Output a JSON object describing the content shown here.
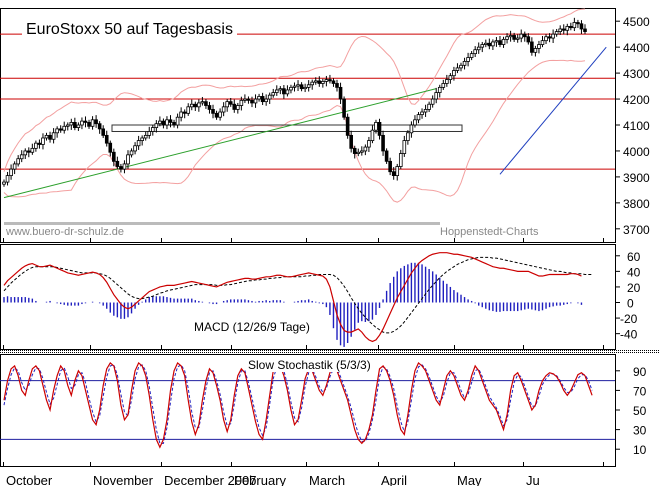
{
  "chart_data": [
    {
      "type": "candlestick",
      "title": "EuroStoxx 50 auf Tagesbasis",
      "watermark_left": "www.buero-dr-schulz.de",
      "watermark_right": "Hoppenstedt-Charts",
      "yticks": [
        3700,
        3800,
        3900,
        4000,
        4100,
        4200,
        4300,
        4400,
        4500
      ],
      "ylim": [
        3680,
        4520
      ],
      "horizontal_lines": [
        4450,
        4280,
        4200,
        3930
      ],
      "support_box": {
        "y_top": 4100,
        "y_bottom": 4075
      },
      "trend_lines": [
        {
          "color": "#2ca02c",
          "start": {
            "day": 0,
            "value": 3820
          },
          "end": {
            "day": 122,
            "value": 4240
          }
        },
        {
          "color": "#1f3fbf",
          "start": {
            "day": 140,
            "value": 3910
          },
          "end": {
            "day": 170,
            "value": 4400
          }
        }
      ],
      "close": [
        3880,
        3905,
        3930,
        3950,
        3970,
        3985,
        4000,
        3995,
        4010,
        4030,
        4025,
        4050,
        4060,
        4045,
        4070,
        4085,
        4080,
        4095,
        4100,
        4110,
        4090,
        4100,
        4115,
        4110,
        4095,
        4120,
        4105,
        4085,
        4060,
        4030,
        3995,
        3960,
        3940,
        3930,
        3950,
        3985,
        4000,
        4020,
        4040,
        4050,
        4060,
        4075,
        4090,
        4105,
        4115,
        4100,
        4120,
        4110,
        4100,
        4130,
        4150,
        4145,
        4170,
        4180,
        4170,
        4185,
        4190,
        4175,
        4160,
        4145,
        4130,
        4150,
        4170,
        4190,
        4180,
        4160,
        4175,
        4195,
        4200,
        4195,
        4185,
        4200,
        4210,
        4190,
        4200,
        4215,
        4225,
        4235,
        4240,
        4220,
        4235,
        4245,
        4250,
        4255,
        4240,
        4245,
        4255,
        4265,
        4270,
        4260,
        4268,
        4275,
        4270,
        4260,
        4245,
        4200,
        4130,
        4060,
        4010,
        3990,
        3995,
        4000,
        4015,
        4040,
        4080,
        4110,
        4060,
        4000,
        3960,
        3920,
        3905,
        3940,
        3990,
        4040,
        4070,
        4100,
        4120,
        4140,
        4150,
        4160,
        4180,
        4200,
        4225,
        4245,
        4260,
        4275,
        4290,
        4310,
        4320,
        4330,
        4345,
        4360,
        4375,
        4390,
        4400,
        4410,
        4415,
        4405,
        4420,
        4425,
        4410,
        4430,
        4440,
        4445,
        4430,
        4435,
        4450,
        4440,
        4420,
        4380,
        4395,
        4410,
        4425,
        4440,
        4435,
        4450,
        4460,
        4470,
        4465,
        4480,
        4475,
        4495,
        4490,
        4470,
        4460
      ]
    },
    {
      "type": "line",
      "label": "MACD (12/26/9 Tage)",
      "yticks": [
        -40,
        -20,
        0,
        20,
        40,
        60
      ],
      "ylim": [
        -52,
        70
      ],
      "macd": [
        22,
        28,
        32,
        36,
        40,
        44,
        47,
        49,
        50,
        48,
        46,
        46,
        47,
        48,
        46,
        44,
        42,
        40,
        38,
        37,
        36,
        35,
        36,
        37,
        38,
        39,
        38,
        36,
        32,
        26,
        18,
        10,
        4,
        -2,
        -6,
        -8,
        -6,
        -2,
        2,
        6,
        10,
        14,
        16,
        18,
        20,
        21,
        22,
        22,
        22,
        23,
        24,
        25,
        26,
        27,
        26,
        25,
        24,
        23,
        22,
        21,
        20,
        22,
        24,
        26,
        27,
        28,
        29,
        30,
        31,
        31,
        30,
        30,
        31,
        32,
        33,
        33,
        34,
        35,
        35,
        34,
        33,
        33,
        34,
        35,
        36,
        37,
        38,
        37,
        36,
        35,
        34,
        30,
        20,
        2,
        -16,
        -28,
        -36,
        -38,
        -38,
        -36,
        -34,
        -38,
        -44,
        -48,
        -50,
        -48,
        -42,
        -34,
        -24,
        -14,
        -4,
        6,
        14,
        22,
        30,
        38,
        44,
        50,
        54,
        57,
        60,
        62,
        63,
        64,
        64,
        64,
        63,
        62,
        62,
        61,
        60,
        59,
        58,
        56,
        54,
        52,
        50,
        48,
        46,
        45,
        44,
        44,
        43,
        42,
        41,
        40,
        40,
        40,
        40,
        38,
        36,
        34,
        34,
        35,
        36,
        36,
        36,
        36,
        36,
        36,
        37,
        37,
        36,
        34
      ],
      "signal": [
        15,
        20,
        25,
        29,
        33,
        37,
        40,
        43,
        45,
        46,
        46,
        46,
        46,
        46,
        46,
        45,
        44,
        43,
        42,
        41,
        40,
        39,
        38,
        38,
        38,
        38,
        38,
        37,
        36,
        34,
        31,
        27,
        23,
        19,
        15,
        11,
        8,
        6,
        5,
        5,
        6,
        7,
        8,
        10,
        12,
        13,
        15,
        16,
        17,
        18,
        19,
        20,
        21,
        22,
        23,
        23,
        23,
        23,
        23,
        23,
        22,
        22,
        22,
        23,
        23,
        24,
        25,
        26,
        27,
        28,
        28,
        29,
        29,
        30,
        30,
        31,
        31,
        32,
        32,
        33,
        33,
        33,
        33,
        33,
        33,
        34,
        34,
        35,
        35,
        36,
        36,
        36,
        36,
        35,
        32,
        27,
        21,
        14,
        6,
        -1,
        -8,
        -14,
        -19,
        -24,
        -28,
        -32,
        -35,
        -38,
        -39,
        -39,
        -37,
        -34,
        -30,
        -25,
        -19,
        -13,
        -7,
        -1,
        5,
        11,
        17,
        22,
        27,
        32,
        36,
        40,
        43,
        46,
        49,
        51,
        53,
        55,
        56,
        57,
        58,
        58,
        58,
        58,
        57,
        57,
        56,
        55,
        54,
        53,
        52,
        51,
        50,
        49,
        48,
        47,
        46,
        45,
        44,
        43,
        42,
        41,
        40,
        40,
        39,
        38,
        38,
        37,
        37,
        37,
        36,
        36,
        36
      ]
    },
    {
      "type": "line",
      "label": "Slow Stochastik (5/3/3)",
      "yticks": [
        10,
        30,
        50,
        70,
        90
      ],
      "ylim": [
        0,
        100
      ],
      "reference_lines": [
        80,
        20
      ],
      "k": [
        60,
        80,
        92,
        95,
        85,
        70,
        65,
        80,
        92,
        95,
        90,
        75,
        60,
        50,
        70,
        85,
        95,
        90,
        75,
        65,
        80,
        90,
        85,
        70,
        55,
        40,
        35,
        50,
        75,
        92,
        98,
        95,
        80,
        55,
        40,
        45,
        70,
        90,
        98,
        95,
        85,
        65,
        40,
        20,
        12,
        20,
        40,
        70,
        90,
        98,
        95,
        85,
        60,
        38,
        25,
        35,
        60,
        80,
        92,
        88,
        75,
        60,
        40,
        28,
        40,
        65,
        85,
        92,
        88,
        72,
        55,
        38,
        25,
        20,
        40,
        65,
        90,
        98,
        95,
        85,
        70,
        50,
        35,
        40,
        60,
        82,
        92,
        90,
        80,
        70,
        65,
        75,
        88,
        95,
        90,
        80,
        70,
        60,
        45,
        30,
        20,
        16,
        20,
        30,
        45,
        70,
        92,
        95,
        90,
        80,
        65,
        45,
        30,
        25,
        45,
        70,
        90,
        98,
        95,
        90,
        80,
        70,
        60,
        55,
        70,
        85,
        90,
        85,
        75,
        65,
        60,
        70,
        85,
        95,
        90,
        80,
        70,
        60,
        55,
        50,
        40,
        30,
        45,
        70,
        85,
        88,
        80,
        70,
        60,
        50,
        55,
        70,
        80,
        85,
        88,
        87,
        84,
        78,
        70,
        65,
        70,
        78,
        86,
        88,
        85,
        75,
        65
      ],
      "d": [
        55,
        72,
        86,
        93,
        90,
        78,
        70,
        75,
        86,
        93,
        92,
        82,
        68,
        56,
        62,
        76,
        90,
        93,
        84,
        72,
        75,
        86,
        88,
        78,
        62,
        48,
        38,
        44,
        64,
        84,
        95,
        96,
        86,
        66,
        48,
        44,
        60,
        82,
        94,
        96,
        90,
        74,
        52,
        30,
        16,
        16,
        32,
        58,
        82,
        94,
        96,
        90,
        72,
        48,
        32,
        32,
        50,
        72,
        88,
        90,
        80,
        66,
        48,
        34,
        36,
        56,
        78,
        90,
        90,
        78,
        62,
        46,
        32,
        24,
        32,
        56,
        82,
        94,
        96,
        90,
        76,
        58,
        42,
        38,
        52,
        74,
        88,
        92,
        84,
        74,
        68,
        72,
        84,
        92,
        92,
        84,
        74,
        64,
        52,
        38,
        26,
        18,
        18,
        26,
        40,
        60,
        84,
        94,
        92,
        84,
        72,
        54,
        38,
        28,
        38,
        60,
        82,
        94,
        96,
        92,
        84,
        74,
        64,
        58,
        64,
        78,
        88,
        88,
        80,
        70,
        62,
        66,
        78,
        90,
        92,
        84,
        74,
        64,
        58,
        52,
        44,
        34,
        40,
        60,
        78,
        86,
        84,
        74,
        64,
        54,
        54,
        64,
        76,
        82,
        86,
        87,
        85,
        80,
        73,
        68,
        68,
        74,
        82,
        86,
        86,
        80,
        70
      ]
    }
  ],
  "months": [
    "October",
    "November",
    "December 2007",
    "February",
    "March",
    "April",
    "May",
    "Ju"
  ]
}
